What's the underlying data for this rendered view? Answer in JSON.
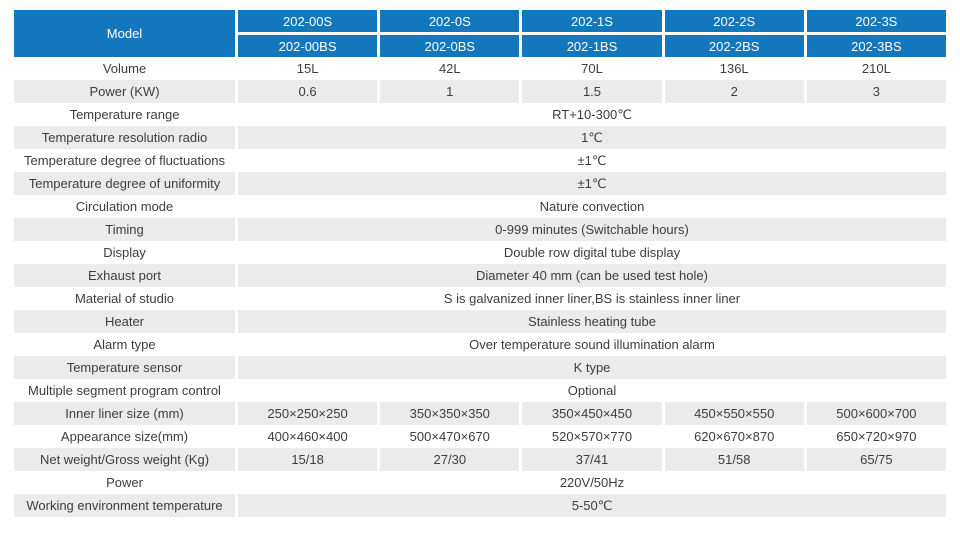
{
  "table": {
    "header": {
      "model_label": "Model",
      "columns": [
        {
          "top": "202-00S",
          "bottom": "202-00BS"
        },
        {
          "top": "202-0S",
          "bottom": "202-0BS"
        },
        {
          "top": "202-1S",
          "bottom": "202-1BS"
        },
        {
          "top": "202-2S",
          "bottom": "202-2BS"
        },
        {
          "top": "202-3S",
          "bottom": "202-3BS"
        }
      ]
    },
    "rows": [
      {
        "label": "Volume",
        "values": [
          "15L",
          "42L",
          "70L",
          "136L",
          "210L"
        ]
      },
      {
        "label": "Power (KW)",
        "values": [
          "0.6",
          "1",
          "1.5",
          "2",
          "3"
        ]
      },
      {
        "label": "Temperature range",
        "value": "RT+10-300℃"
      },
      {
        "label": "Temperature resolution radio",
        "value": "1℃"
      },
      {
        "label": "Temperature degree of fluctuations",
        "value": "±1℃"
      },
      {
        "label": "Temperature degree of uniformity",
        "value": "±1℃"
      },
      {
        "label": "Circulation mode",
        "value": "Nature convection"
      },
      {
        "label": "Timing",
        "value": "0-999 minutes (Switchable hours)"
      },
      {
        "label": "Display",
        "value": "Double row digital tube display"
      },
      {
        "label": "Exhaust port",
        "value": "Diameter 40 mm (can be used test hole)"
      },
      {
        "label": "Material of studio",
        "value": "S is galvanized inner liner,BS is stainless inner liner"
      },
      {
        "label": "Heater",
        "value": "Stainless heating tube"
      },
      {
        "label": "Alarm type",
        "value": "Over temperature sound illumination alarm"
      },
      {
        "label": "Temperature sensor",
        "value": "K type"
      },
      {
        "label": "Multiple segment program control",
        "value": "Optional"
      },
      {
        "label": "Inner liner size (mm)",
        "values": [
          "250×250×250",
          "350×350×350",
          "350×450×450",
          "450×550×550",
          "500×600×700"
        ]
      },
      {
        "label": "Appearance size(mm)",
        "values": [
          "400×460×400",
          "500×470×670",
          "520×570×770",
          "620×670×870",
          "650×720×970"
        ]
      },
      {
        "label": "Net weight/Gross weight (Kg)",
        "values": [
          "15/18",
          "27/30",
          "37/41",
          "51/58",
          "65/75"
        ]
      },
      {
        "label": "Power",
        "value": "220V/50Hz"
      },
      {
        "label": "Working environment temperature",
        "value": "5-50℃"
      }
    ],
    "colors": {
      "header_bg": "#1377bd",
      "alt_row_bg": "#ebebeb",
      "text": "#3d3d3d",
      "header_text": "#ffffff"
    }
  }
}
